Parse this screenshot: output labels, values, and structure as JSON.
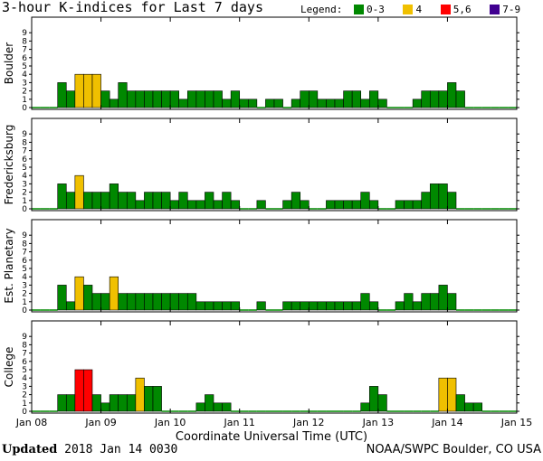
{
  "chart_data": {
    "type": "bar",
    "title": "3-hour K-indices for Last 7 days",
    "legend": {
      "title": "Legend:",
      "entries": [
        {
          "label": "0-3",
          "color": "#008800"
        },
        {
          "label": "4",
          "color": "#f0c000"
        },
        {
          "label": "5,6",
          "color": "#ff0000"
        },
        {
          "label": "7-9",
          "color": "#400090"
        }
      ]
    },
    "xlabel": "Coordinate Universal Time (UTC)",
    "x_tick_labels": [
      "Jan 08",
      "Jan 09",
      "Jan 10",
      "Jan 11",
      "Jan 12",
      "Jan 13",
      "Jan 14",
      "Jan 15"
    ],
    "y_tick_labels": [
      "0",
      "1",
      "2",
      "3",
      "4",
      "5",
      "6",
      "7",
      "8",
      "9"
    ],
    "ylim": [
      0,
      9
    ],
    "bins_per_day": 8,
    "panels": [
      {
        "name": "Boulder",
        "values": [
          0,
          0,
          0,
          3,
          2,
          4,
          4,
          4,
          2,
          1,
          3,
          2,
          2,
          2,
          2,
          2,
          2,
          1,
          2,
          2,
          2,
          2,
          1,
          2,
          1,
          1,
          0,
          1,
          1,
          0,
          1,
          2,
          2,
          1,
          1,
          1,
          2,
          2,
          1,
          2,
          1,
          0,
          0,
          0,
          1,
          2,
          2,
          2,
          3,
          2,
          0,
          0,
          0,
          0,
          0,
          0
        ]
      },
      {
        "name": "Fredericksburg",
        "values": [
          0,
          0,
          0,
          3,
          2,
          4,
          2,
          2,
          2,
          3,
          2,
          2,
          1,
          2,
          2,
          2,
          1,
          2,
          1,
          1,
          2,
          1,
          2,
          1,
          0,
          0,
          1,
          0,
          0,
          1,
          2,
          1,
          0,
          0,
          1,
          1,
          1,
          1,
          2,
          1,
          0,
          0,
          1,
          1,
          1,
          2,
          3,
          3,
          2,
          0,
          0,
          0,
          0,
          0,
          0,
          0
        ]
      },
      {
        "name": "Est. Planetary",
        "values": [
          0,
          0,
          0,
          3,
          1,
          4,
          3,
          2,
          2,
          4,
          2,
          2,
          2,
          2,
          2,
          2,
          2,
          2,
          2,
          1,
          1,
          1,
          1,
          1,
          0,
          0,
          1,
          0,
          0,
          1,
          1,
          1,
          1,
          1,
          1,
          1,
          1,
          1,
          2,
          1,
          0,
          0,
          1,
          2,
          1,
          2,
          2,
          3,
          2,
          0,
          0,
          0,
          0,
          0,
          0,
          0
        ]
      },
      {
        "name": "College",
        "values": [
          0,
          0,
          0,
          2,
          2,
          5,
          5,
          2,
          1,
          2,
          2,
          2,
          4,
          3,
          3,
          0,
          0,
          0,
          0,
          1,
          2,
          1,
          1,
          0,
          0,
          0,
          0,
          0,
          0,
          0,
          0,
          0,
          0,
          0,
          0,
          0,
          0,
          0,
          1,
          3,
          2,
          0,
          0,
          0,
          0,
          0,
          0,
          4,
          4,
          2,
          1,
          1,
          0,
          0,
          0,
          0
        ]
      }
    ]
  },
  "footer": {
    "updated_label": "Updated",
    "updated_value": "2018 Jan 14 0030",
    "credit": "NOAA/SWPC Boulder, CO USA"
  }
}
